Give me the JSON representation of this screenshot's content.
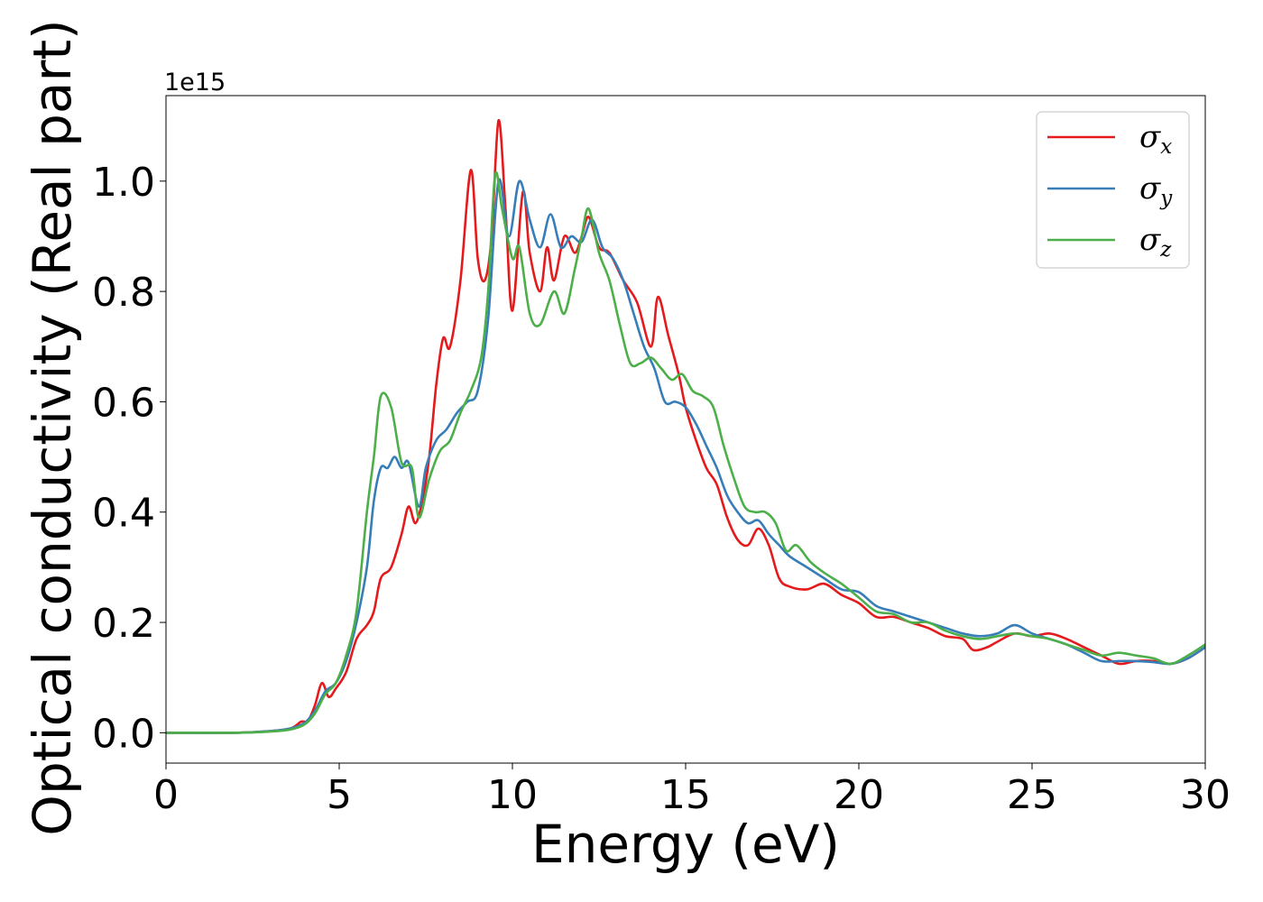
{
  "chart_data": {
    "type": "line",
    "xlabel": "Energy (eV)",
    "ylabel": "Optical conductivity (Real part)",
    "y_offset_label": "1e15",
    "xlim": [
      0,
      30
    ],
    "ylim": [
      -0.055,
      1.155
    ],
    "x_ticks": [
      0,
      5,
      10,
      15,
      20,
      25,
      30
    ],
    "y_ticks": [
      0.0,
      0.2,
      0.4,
      0.6,
      0.8,
      1.0
    ],
    "y_tick_labels": [
      "0.0",
      "0.2",
      "0.4",
      "0.6",
      "0.8",
      "1.0"
    ],
    "grid": false,
    "legend_position": "top-right",
    "series": [
      {
        "name": "σx",
        "symbol": "σ",
        "subscript": "x",
        "color": "#e41a1c",
        "points": [
          [
            0,
            0
          ],
          [
            2,
            0
          ],
          [
            3,
            0.003
          ],
          [
            3.6,
            0.008
          ],
          [
            3.9,
            0.02
          ],
          [
            4.1,
            0.022
          ],
          [
            4.3,
            0.05
          ],
          [
            4.5,
            0.09
          ],
          [
            4.7,
            0.065
          ],
          [
            4.9,
            0.08
          ],
          [
            5.2,
            0.11
          ],
          [
            5.5,
            0.17
          ],
          [
            5.8,
            0.195
          ],
          [
            6.0,
            0.22
          ],
          [
            6.2,
            0.28
          ],
          [
            6.5,
            0.3
          ],
          [
            6.8,
            0.36
          ],
          [
            7.0,
            0.41
          ],
          [
            7.2,
            0.38
          ],
          [
            7.4,
            0.42
          ],
          [
            7.6,
            0.5
          ],
          [
            7.8,
            0.63
          ],
          [
            8.0,
            0.715
          ],
          [
            8.2,
            0.7
          ],
          [
            8.5,
            0.82
          ],
          [
            8.8,
            1.02
          ],
          [
            9.0,
            0.86
          ],
          [
            9.2,
            0.82
          ],
          [
            9.4,
            0.9
          ],
          [
            9.6,
            1.11
          ],
          [
            9.8,
            0.95
          ],
          [
            10.0,
            0.765
          ],
          [
            10.3,
            0.98
          ],
          [
            10.5,
            0.87
          ],
          [
            10.8,
            0.8
          ],
          [
            11.0,
            0.88
          ],
          [
            11.2,
            0.82
          ],
          [
            11.5,
            0.9
          ],
          [
            11.8,
            0.87
          ],
          [
            12.0,
            0.9
          ],
          [
            12.2,
            0.935
          ],
          [
            12.5,
            0.88
          ],
          [
            12.8,
            0.87
          ],
          [
            13.2,
            0.82
          ],
          [
            13.6,
            0.78
          ],
          [
            14.0,
            0.7
          ],
          [
            14.2,
            0.79
          ],
          [
            14.5,
            0.72
          ],
          [
            14.8,
            0.65
          ],
          [
            15.0,
            0.59
          ],
          [
            15.3,
            0.53
          ],
          [
            15.6,
            0.48
          ],
          [
            15.9,
            0.45
          ],
          [
            16.2,
            0.39
          ],
          [
            16.5,
            0.35
          ],
          [
            16.8,
            0.34
          ],
          [
            17.1,
            0.37
          ],
          [
            17.4,
            0.34
          ],
          [
            17.7,
            0.28
          ],
          [
            18.0,
            0.265
          ],
          [
            18.5,
            0.26
          ],
          [
            19.0,
            0.27
          ],
          [
            19.5,
            0.25
          ],
          [
            20.0,
            0.235
          ],
          [
            20.5,
            0.21
          ],
          [
            21.0,
            0.21
          ],
          [
            21.5,
            0.2
          ],
          [
            22.0,
            0.19
          ],
          [
            22.5,
            0.175
          ],
          [
            23.0,
            0.17
          ],
          [
            23.3,
            0.15
          ],
          [
            23.7,
            0.155
          ],
          [
            24.0,
            0.165
          ],
          [
            24.5,
            0.18
          ],
          [
            25.0,
            0.175
          ],
          [
            25.5,
            0.18
          ],
          [
            26.0,
            0.17
          ],
          [
            26.5,
            0.155
          ],
          [
            27.0,
            0.14
          ],
          [
            27.5,
            0.125
          ],
          [
            28.0,
            0.13
          ],
          [
            28.5,
            0.13
          ],
          [
            29.0,
            0.125
          ],
          [
            29.5,
            0.135
          ],
          [
            30.0,
            0.155
          ]
        ]
      },
      {
        "name": "σy",
        "symbol": "σ",
        "subscript": "y",
        "color": "#377eb8",
        "points": [
          [
            0,
            0
          ],
          [
            2,
            0
          ],
          [
            3,
            0.003
          ],
          [
            3.6,
            0.008
          ],
          [
            4.0,
            0.018
          ],
          [
            4.3,
            0.04
          ],
          [
            4.6,
            0.075
          ],
          [
            4.9,
            0.09
          ],
          [
            5.2,
            0.13
          ],
          [
            5.5,
            0.2
          ],
          [
            5.8,
            0.3
          ],
          [
            6.0,
            0.42
          ],
          [
            6.2,
            0.48
          ],
          [
            6.4,
            0.48
          ],
          [
            6.6,
            0.5
          ],
          [
            6.8,
            0.48
          ],
          [
            7.0,
            0.49
          ],
          [
            7.3,
            0.41
          ],
          [
            7.5,
            0.48
          ],
          [
            7.8,
            0.53
          ],
          [
            8.1,
            0.55
          ],
          [
            8.4,
            0.58
          ],
          [
            8.7,
            0.6
          ],
          [
            9.0,
            0.62
          ],
          [
            9.3,
            0.75
          ],
          [
            9.6,
            1.0
          ],
          [
            9.9,
            0.9
          ],
          [
            10.2,
            1.0
          ],
          [
            10.5,
            0.93
          ],
          [
            10.8,
            0.88
          ],
          [
            11.1,
            0.94
          ],
          [
            11.4,
            0.88
          ],
          [
            11.7,
            0.9
          ],
          [
            12.0,
            0.89
          ],
          [
            12.3,
            0.93
          ],
          [
            12.6,
            0.88
          ],
          [
            12.9,
            0.86
          ],
          [
            13.2,
            0.82
          ],
          [
            13.5,
            0.76
          ],
          [
            13.8,
            0.7
          ],
          [
            14.1,
            0.66
          ],
          [
            14.4,
            0.6
          ],
          [
            14.7,
            0.6
          ],
          [
            15.0,
            0.59
          ],
          [
            15.3,
            0.56
          ],
          [
            15.6,
            0.52
          ],
          [
            15.9,
            0.48
          ],
          [
            16.2,
            0.43
          ],
          [
            16.5,
            0.4
          ],
          [
            16.8,
            0.38
          ],
          [
            17.1,
            0.385
          ],
          [
            17.4,
            0.36
          ],
          [
            17.7,
            0.34
          ],
          [
            18.0,
            0.32
          ],
          [
            18.5,
            0.3
          ],
          [
            19.0,
            0.28
          ],
          [
            19.5,
            0.26
          ],
          [
            20.0,
            0.255
          ],
          [
            20.5,
            0.23
          ],
          [
            21.0,
            0.22
          ],
          [
            21.5,
            0.21
          ],
          [
            22.0,
            0.2
          ],
          [
            22.5,
            0.19
          ],
          [
            23.0,
            0.18
          ],
          [
            23.5,
            0.175
          ],
          [
            24.0,
            0.18
          ],
          [
            24.5,
            0.195
          ],
          [
            25.0,
            0.18
          ],
          [
            25.5,
            0.17
          ],
          [
            26.0,
            0.16
          ],
          [
            26.5,
            0.145
          ],
          [
            27.0,
            0.13
          ],
          [
            27.5,
            0.13
          ],
          [
            28.0,
            0.13
          ],
          [
            28.5,
            0.128
          ],
          [
            29.0,
            0.125
          ],
          [
            29.5,
            0.135
          ],
          [
            30.0,
            0.155
          ]
        ]
      },
      {
        "name": "σz",
        "symbol": "σ",
        "subscript": "z",
        "color": "#4daf4a",
        "points": [
          [
            0,
            0
          ],
          [
            2,
            0
          ],
          [
            3,
            0.002
          ],
          [
            3.6,
            0.006
          ],
          [
            4.0,
            0.015
          ],
          [
            4.3,
            0.035
          ],
          [
            4.6,
            0.07
          ],
          [
            4.9,
            0.09
          ],
          [
            5.2,
            0.14
          ],
          [
            5.5,
            0.22
          ],
          [
            5.8,
            0.4
          ],
          [
            6.0,
            0.5
          ],
          [
            6.2,
            0.61
          ],
          [
            6.5,
            0.59
          ],
          [
            6.8,
            0.49
          ],
          [
            7.1,
            0.48
          ],
          [
            7.3,
            0.39
          ],
          [
            7.6,
            0.46
          ],
          [
            7.9,
            0.51
          ],
          [
            8.2,
            0.53
          ],
          [
            8.5,
            0.58
          ],
          [
            8.8,
            0.62
          ],
          [
            9.1,
            0.68
          ],
          [
            9.3,
            0.8
          ],
          [
            9.5,
            1.01
          ],
          [
            9.7,
            0.95
          ],
          [
            10.0,
            0.86
          ],
          [
            10.2,
            0.88
          ],
          [
            10.5,
            0.76
          ],
          [
            10.8,
            0.74
          ],
          [
            11.2,
            0.8
          ],
          [
            11.5,
            0.76
          ],
          [
            11.8,
            0.84
          ],
          [
            12.0,
            0.9
          ],
          [
            12.2,
            0.95
          ],
          [
            12.5,
            0.87
          ],
          [
            12.8,
            0.82
          ],
          [
            13.1,
            0.74
          ],
          [
            13.4,
            0.67
          ],
          [
            13.7,
            0.67
          ],
          [
            14.0,
            0.68
          ],
          [
            14.3,
            0.66
          ],
          [
            14.6,
            0.64
          ],
          [
            14.9,
            0.65
          ],
          [
            15.2,
            0.62
          ],
          [
            15.5,
            0.61
          ],
          [
            15.8,
            0.59
          ],
          [
            16.1,
            0.52
          ],
          [
            16.4,
            0.46
          ],
          [
            16.7,
            0.41
          ],
          [
            17.0,
            0.4
          ],
          [
            17.3,
            0.4
          ],
          [
            17.6,
            0.38
          ],
          [
            17.9,
            0.33
          ],
          [
            18.2,
            0.34
          ],
          [
            18.6,
            0.31
          ],
          [
            19.0,
            0.29
          ],
          [
            19.5,
            0.27
          ],
          [
            20.0,
            0.245
          ],
          [
            20.5,
            0.22
          ],
          [
            21.0,
            0.215
          ],
          [
            21.5,
            0.2
          ],
          [
            22.0,
            0.2
          ],
          [
            22.5,
            0.185
          ],
          [
            23.0,
            0.175
          ],
          [
            23.5,
            0.17
          ],
          [
            24.0,
            0.175
          ],
          [
            24.5,
            0.18
          ],
          [
            25.0,
            0.175
          ],
          [
            25.5,
            0.17
          ],
          [
            26.0,
            0.16
          ],
          [
            26.5,
            0.15
          ],
          [
            27.0,
            0.14
          ],
          [
            27.5,
            0.145
          ],
          [
            28.0,
            0.14
          ],
          [
            28.5,
            0.135
          ],
          [
            29.0,
            0.125
          ],
          [
            29.5,
            0.14
          ],
          [
            30.0,
            0.16
          ]
        ]
      }
    ]
  }
}
